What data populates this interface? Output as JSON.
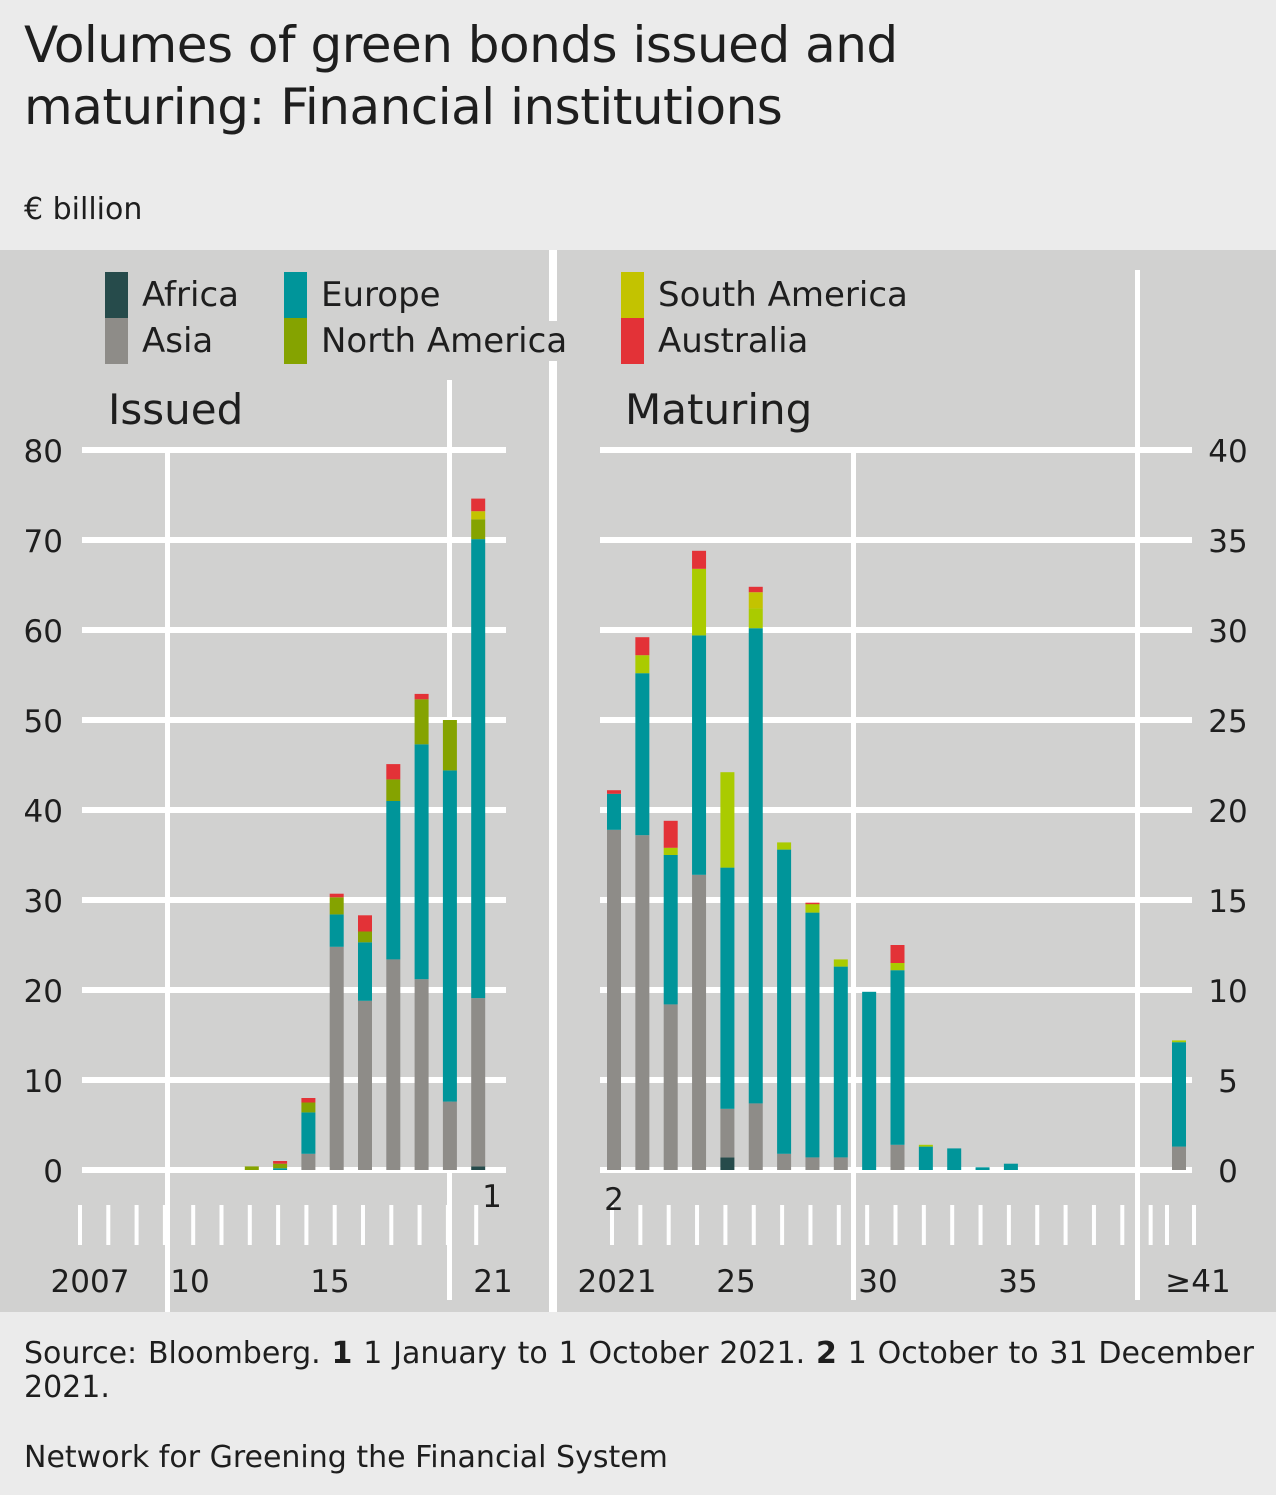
{
  "title": "Volumes of green bonds issued and maturing: Financial institutions",
  "title_line1": "Volumes of green bonds issued and",
  "title_line2": "maturing: Financial institutions",
  "unit": "€ billion",
  "legend": [
    {
      "name": "Africa",
      "color": "#264b4b"
    },
    {
      "name": "Asia",
      "color": "#8e8c88"
    },
    {
      "name": "Europe",
      "color": "#00959a"
    },
    {
      "name": "North America",
      "color": "#85a300"
    },
    {
      "name": "South America",
      "color": "#c3c300"
    },
    {
      "name": "Australia",
      "color": "#e33237"
    }
  ],
  "maturing_north_america_color": "#aacb00",
  "footer": {
    "source": "Source: Bloomberg.",
    "note1_marker": "1",
    "note1_text": "1 January to 1 October 2021.",
    "note2_marker": "2",
    "note2_text": "1 October to 31 December 2021.",
    "publisher": "Network for Greening the Financial System"
  },
  "chart_data": [
    {
      "type": "bar",
      "stacked": true,
      "title": "Issued",
      "xlabel": "",
      "ylabel": "€ billion",
      "ylim": [
        0,
        80
      ],
      "yticks": [
        "0",
        "10",
        "20",
        "30",
        "40",
        "50",
        "60",
        "70",
        "80"
      ],
      "categories": [
        "2007",
        "2008",
        "2009",
        "2010",
        "2011",
        "2012",
        "2013",
        "2014",
        "2015",
        "2016",
        "2017",
        "2018",
        "2019",
        "2020",
        "2021"
      ],
      "xtick_labels": [
        "2007",
        "10",
        "15",
        "21"
      ],
      "annotation": "1",
      "annotation_category": "2021",
      "series": [
        {
          "name": "Africa",
          "values": [
            0,
            0,
            0,
            0,
            0,
            0,
            0,
            0,
            0,
            0,
            0,
            0,
            0,
            0,
            0.4
          ]
        },
        {
          "name": "Asia",
          "values": [
            0,
            0,
            0,
            0,
            0,
            0,
            0,
            0,
            1.8,
            24.8,
            18.8,
            23.4,
            21.2,
            7.6,
            18.7
          ]
        },
        {
          "name": "Europe",
          "values": [
            0,
            0,
            0,
            0,
            0,
            0,
            0,
            0.2,
            4.6,
            3.6,
            6.5,
            17.6,
            26.1,
            36.8,
            51.0
          ]
        },
        {
          "name": "North America",
          "values": [
            0,
            0,
            0,
            0,
            0,
            0,
            0.4,
            0.5,
            1.1,
            1.9,
            1.2,
            2.4,
            5.0,
            5.6,
            2.2
          ]
        },
        {
          "name": "South America",
          "values": [
            0,
            0,
            0,
            0,
            0,
            0,
            0,
            0,
            0,
            0,
            0,
            0,
            0,
            0,
            0.9
          ]
        },
        {
          "name": "Australia",
          "values": [
            0,
            0,
            0,
            0,
            0,
            0,
            0,
            0.3,
            0.5,
            0.4,
            1.8,
            1.7,
            0.6,
            0,
            1.4
          ]
        }
      ]
    },
    {
      "type": "bar",
      "stacked": true,
      "title": "Maturing",
      "xlabel": "",
      "ylabel": "€ billion",
      "ylim": [
        0,
        40
      ],
      "yticks": [
        "0",
        "5",
        "10",
        "15",
        "20",
        "25",
        "30",
        "35",
        "40"
      ],
      "categories": [
        "2021",
        "2022",
        "2023",
        "2024",
        "2025",
        "2026",
        "2027",
        "2028",
        "2029",
        "2030",
        "2031",
        "2032",
        "2033",
        "2034",
        "2035",
        "2036",
        "2037",
        "2038",
        "2039",
        "2040",
        "≥41"
      ],
      "xtick_labels": [
        "2021",
        "25",
        "30",
        "35",
        "≥41"
      ],
      "annotation": "2",
      "annotation_category": "2021",
      "series": [
        {
          "name": "Africa",
          "values": [
            0,
            0,
            0,
            0,
            0.7,
            0,
            0,
            0,
            0,
            0,
            0,
            0,
            0,
            0,
            0,
            0,
            0,
            0,
            0,
            0,
            0
          ]
        },
        {
          "name": "Asia",
          "values": [
            18.9,
            18.6,
            9.2,
            16.4,
            2.7,
            3.7,
            0.9,
            0.7,
            0.7,
            0,
            1.4,
            0,
            0,
            0,
            0,
            0,
            0,
            0,
            0,
            0,
            1.3
          ]
        },
        {
          "name": "Europe",
          "values": [
            2.0,
            9.0,
            8.3,
            13.3,
            13.4,
            26.4,
            16.9,
            13.6,
            10.6,
            9.9,
            9.7,
            1.3,
            1.2,
            0.15,
            0.35,
            0,
            0,
            0,
            0,
            0,
            5.8
          ]
        },
        {
          "name": "North America",
          "values": [
            0,
            1.0,
            0.4,
            3.7,
            5.3,
            1.1,
            0.4,
            0.5,
            0.4,
            0,
            0.4,
            0.1,
            0,
            0,
            0,
            0,
            0,
            0,
            0,
            0,
            0.1
          ]
        },
        {
          "name": "South America",
          "values": [
            0,
            0,
            0,
            0,
            0,
            0.9,
            0,
            0,
            0,
            0,
            0,
            0,
            0,
            0,
            0,
            0,
            0,
            0,
            0,
            0,
            0
          ]
        },
        {
          "name": "Australia",
          "values": [
            0.2,
            1.0,
            1.5,
            1.0,
            0,
            0.3,
            0,
            0.05,
            0,
            0,
            1.0,
            0,
            0,
            0,
            0,
            0,
            0,
            0,
            0,
            0,
            0
          ]
        }
      ]
    }
  ]
}
